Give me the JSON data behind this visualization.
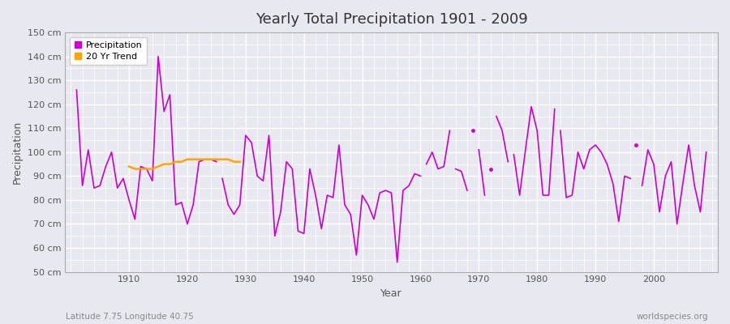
{
  "title": "Yearly Total Precipitation 1901 - 2009",
  "xlabel": "Year",
  "ylabel": "Precipitation",
  "subtitle": "Latitude 7.75 Longitude 40.75",
  "watermark": "worldspecies.org",
  "ylim": [
    50,
    150
  ],
  "yticks": [
    50,
    60,
    70,
    80,
    90,
    100,
    110,
    120,
    130,
    140,
    150
  ],
  "ytick_labels": [
    "50 cm",
    "60 cm",
    "70 cm",
    "80 cm",
    "90 cm",
    "100 cm",
    "110 cm",
    "120 cm",
    "130 cm",
    "140 cm",
    "150 cm"
  ],
  "xlim": [
    1899,
    2011
  ],
  "xticks": [
    1910,
    1920,
    1930,
    1940,
    1950,
    1960,
    1970,
    1980,
    1990,
    2000
  ],
  "precip_color": "#cc00cc",
  "trend_color": "#FFA500",
  "bg_color": "#e8e8f0",
  "plot_bg_color": "#e8e8f0",
  "grid_color": "#ffffff",
  "precipitation_segments": [
    {
      "years": [
        1901,
        1902,
        1903,
        1904,
        1905,
        1906,
        1907,
        1908,
        1909,
        1910,
        1911,
        1912,
        1913,
        1914,
        1915,
        1916,
        1917,
        1918,
        1919,
        1920,
        1921,
        1922,
        1923,
        1924,
        1925
      ],
      "values": [
        126,
        86,
        101,
        85,
        86,
        94,
        100,
        85,
        89,
        80,
        72,
        94,
        93,
        88,
        140,
        117,
        124,
        78,
        79,
        70,
        78,
        96,
        97,
        97,
        96
      ]
    },
    {
      "years": [
        1926,
        1927,
        1928,
        1929,
        1930,
        1931,
        1932,
        1933,
        1934,
        1935,
        1936,
        1937,
        1938,
        1939,
        1940,
        1941,
        1942,
        1943,
        1944,
        1945,
        1946,
        1947,
        1948,
        1949,
        1950,
        1951,
        1952,
        1953,
        1954,
        1955,
        1956,
        1957,
        1958,
        1959,
        1960
      ],
      "values": [
        89,
        78,
        74,
        78,
        107,
        104,
        90,
        88,
        107,
        65,
        75,
        96,
        93,
        67,
        66,
        93,
        82,
        68,
        82,
        81,
        103,
        78,
        74,
        57,
        82,
        78,
        72,
        83,
        84,
        83,
        54,
        84,
        86,
        91,
        90
      ]
    },
    {
      "years": [
        1961,
        1962,
        1963,
        1964,
        1965
      ],
      "values": [
        95,
        100,
        93,
        94,
        109
      ]
    },
    {
      "years": [
        1966,
        1967,
        1968
      ],
      "values": [
        93,
        92,
        84
      ]
    },
    {
      "years": [
        1969
      ],
      "values": [
        109
      ]
    },
    {
      "years": [
        1970,
        1971
      ],
      "values": [
        101,
        82
      ]
    },
    {
      "years": [
        1972
      ],
      "values": [
        93
      ]
    },
    {
      "years": [
        1973,
        1974,
        1975
      ],
      "values": [
        115,
        109,
        96
      ]
    },
    {
      "years": [
        1976,
        1977,
        1978,
        1979,
        1980,
        1981,
        1982,
        1983
      ],
      "values": [
        99,
        82,
        101,
        119,
        109,
        82,
        82,
        118
      ]
    },
    {
      "years": [
        1984,
        1985,
        1986,
        1987,
        1988,
        1989,
        1990,
        1991,
        1992,
        1993,
        1994,
        1995,
        1996
      ],
      "values": [
        109,
        81,
        82,
        100,
        93,
        101,
        103,
        100,
        95,
        87,
        71,
        90,
        89
      ]
    },
    {
      "years": [
        1997
      ],
      "values": [
        103
      ]
    },
    {
      "years": [
        1998,
        1999,
        2000,
        2001,
        2002,
        2003,
        2004,
        2005,
        2006,
        2007,
        2008,
        2009
      ],
      "values": [
        86,
        101,
        95,
        75,
        90,
        96,
        70,
        87,
        103,
        86,
        75,
        100
      ]
    }
  ],
  "trend_segments": [
    {
      "years": [
        1910,
        1911,
        1912,
        1913,
        1914,
        1915,
        1916,
        1917,
        1918,
        1919,
        1920,
        1921,
        1922,
        1923,
        1924,
        1925,
        1926,
        1927,
        1928,
        1929
      ],
      "values": [
        94,
        93,
        93,
        93,
        93,
        94,
        95,
        95,
        96,
        96,
        97,
        97,
        97,
        97,
        97,
        97,
        97,
        97,
        96,
        96
      ]
    }
  ]
}
